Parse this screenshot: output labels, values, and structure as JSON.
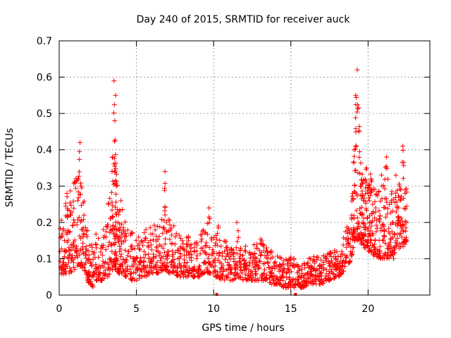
{
  "chart_data": {
    "type": "scatter",
    "title": "Day 240 of 2015, SRMTID for receiver auck",
    "xlabel": "GPS time / hours",
    "ylabel": "SRMTID / TECUs",
    "xlim": [
      0,
      24
    ],
    "ylim": [
      0,
      0.7
    ],
    "x_ticks": [
      0,
      5,
      10,
      15,
      20
    ],
    "y_ticks": [
      0,
      0.1,
      0.2,
      0.3,
      0.4,
      0.5,
      0.6,
      0.7
    ],
    "x_tick_labels": [
      "0",
      "5",
      "10",
      "15",
      "20"
    ],
    "y_tick_labels": [
      "0",
      "0.1",
      "0.2",
      "0.3",
      "0.4",
      "0.5",
      "0.6",
      "0.7"
    ],
    "grid": true,
    "marker": "+",
    "color": "#ff0000",
    "series": [
      {
        "name": "SRMTID",
        "x": [
          0.05,
          0.2,
          0.35,
          0.5,
          0.6,
          0.75,
          0.9,
          1.05,
          1.2,
          1.35,
          1.45,
          1.6,
          1.75,
          1.9,
          2.05,
          2.2,
          2.4,
          2.6,
          2.8,
          3.0,
          3.2,
          3.35,
          3.45,
          3.55,
          3.6,
          3.65,
          3.7,
          3.8,
          3.9,
          4.0,
          4.15,
          4.3,
          4.5,
          4.7,
          4.9,
          5.1,
          5.3,
          5.5,
          5.7,
          5.9,
          6.1,
          6.3,
          6.5,
          6.7,
          6.85,
          6.95,
          7.1,
          7.3,
          7.5,
          7.7,
          7.9,
          8.1,
          8.3,
          8.5,
          8.7,
          8.9,
          9.1,
          9.3,
          9.5,
          9.7,
          9.9,
          10.1,
          10.3,
          10.5,
          10.7,
          10.9,
          11.1,
          11.3,
          11.5,
          11.7,
          11.9,
          12.1,
          12.3,
          12.5,
          12.7,
          12.9,
          13.1,
          13.3,
          13.5,
          13.7,
          13.9,
          14.1,
          14.3,
          14.5,
          14.7,
          14.9,
          15.1,
          15.3,
          15.5,
          15.7,
          15.9,
          16.1,
          16.3,
          16.5,
          16.7,
          16.9,
          17.1,
          17.3,
          17.5,
          17.7,
          17.9,
          18.1,
          18.3,
          18.5,
          18.7,
          18.9,
          19.0,
          19.1,
          19.2,
          19.3,
          19.4,
          19.5,
          19.6,
          19.7,
          19.8,
          19.9,
          20.0,
          20.1,
          20.2,
          20.3,
          20.45,
          20.6,
          20.75,
          20.9,
          21.05,
          21.2,
          21.35,
          21.5,
          21.65,
          21.8,
          21.95,
          22.1,
          22.25,
          22.4,
          22.5
        ],
        "y": [
          0.12,
          0.08,
          0.15,
          0.28,
          0.1,
          0.22,
          0.14,
          0.31,
          0.26,
          0.42,
          0.18,
          0.22,
          0.12,
          0.06,
          0.09,
          0.05,
          0.13,
          0.08,
          0.11,
          0.09,
          0.25,
          0.14,
          0.38,
          0.59,
          0.48,
          0.55,
          0.3,
          0.2,
          0.12,
          0.26,
          0.18,
          0.09,
          0.12,
          0.08,
          0.1,
          0.07,
          0.09,
          0.12,
          0.08,
          0.15,
          0.1,
          0.13,
          0.11,
          0.17,
          0.34,
          0.2,
          0.12,
          0.09,
          0.14,
          0.1,
          0.08,
          0.11,
          0.09,
          0.12,
          0.07,
          0.1,
          0.08,
          0.13,
          0.09,
          0.24,
          0.11,
          0.08,
          0.19,
          0.07,
          0.12,
          0.09,
          0.06,
          0.1,
          0.2,
          0.08,
          0.11,
          0.07,
          0.09,
          0.06,
          0.1,
          0.08,
          0.14,
          0.07,
          0.09,
          0.06,
          0.08,
          0.05,
          0.07,
          0.04,
          0.06,
          0.05,
          0.08,
          0.03,
          0.05,
          0.07,
          0.04,
          0.06,
          0.08,
          0.05,
          0.07,
          0.06,
          0.09,
          0.07,
          0.08,
          0.06,
          0.1,
          0.08,
          0.12,
          0.09,
          0.14,
          0.18,
          0.28,
          0.4,
          0.55,
          0.62,
          0.45,
          0.3,
          0.22,
          0.26,
          0.18,
          0.35,
          0.28,
          0.2,
          0.32,
          0.25,
          0.15,
          0.12,
          0.21,
          0.3,
          0.18,
          0.38,
          0.14,
          0.26,
          0.1,
          0.33,
          0.24,
          0.17,
          0.41,
          0.28,
          0.2
        ],
        "band_low": [
          0.05,
          0.05,
          0.06,
          0.06,
          0.06,
          0.06,
          0.07,
          0.07,
          0.08,
          0.08,
          0.07,
          0.07,
          0.06,
          0.03,
          0.03,
          0.02,
          0.04,
          0.04,
          0.04,
          0.05,
          0.05,
          0.06,
          0.07,
          0.08,
          0.08,
          0.07,
          0.07,
          0.06,
          0.06,
          0.06,
          0.06,
          0.05,
          0.05,
          0.04,
          0.04,
          0.04,
          0.05,
          0.05,
          0.05,
          0.06,
          0.06,
          0.06,
          0.06,
          0.07,
          0.07,
          0.07,
          0.06,
          0.06,
          0.06,
          0.05,
          0.05,
          0.05,
          0.05,
          0.05,
          0.05,
          0.05,
          0.05,
          0.06,
          0.06,
          0.06,
          0.06,
          0.05,
          0.05,
          0.04,
          0.04,
          0.04,
          0.04,
          0.04,
          0.05,
          0.04,
          0.04,
          0.04,
          0.04,
          0.04,
          0.04,
          0.04,
          0.04,
          0.04,
          0.04,
          0.03,
          0.03,
          0.03,
          0.03,
          0.02,
          0.02,
          0.02,
          0.02,
          0.02,
          0.02,
          0.02,
          0.02,
          0.03,
          0.03,
          0.03,
          0.03,
          0.03,
          0.03,
          0.04,
          0.04,
          0.04,
          0.05,
          0.05,
          0.06,
          0.07,
          0.08,
          0.1,
          0.12,
          0.14,
          0.15,
          0.15,
          0.15,
          0.14,
          0.14,
          0.13,
          0.13,
          0.13,
          0.12,
          0.12,
          0.12,
          0.11,
          0.11,
          0.1,
          0.1,
          0.1,
          0.1,
          0.1,
          0.1,
          0.11,
          0.11,
          0.12,
          0.12,
          0.13,
          0.13,
          0.14,
          0.15
        ],
        "band_high": [
          0.22,
          0.2,
          0.24,
          0.3,
          0.28,
          0.29,
          0.3,
          0.34,
          0.35,
          0.42,
          0.3,
          0.27,
          0.22,
          0.16,
          0.15,
          0.14,
          0.18,
          0.17,
          0.18,
          0.2,
          0.26,
          0.28,
          0.4,
          0.59,
          0.52,
          0.5,
          0.38,
          0.3,
          0.26,
          0.3,
          0.26,
          0.2,
          0.2,
          0.18,
          0.17,
          0.17,
          0.18,
          0.19,
          0.19,
          0.2,
          0.2,
          0.21,
          0.21,
          0.22,
          0.34,
          0.22,
          0.21,
          0.2,
          0.2,
          0.19,
          0.18,
          0.18,
          0.18,
          0.18,
          0.17,
          0.17,
          0.17,
          0.18,
          0.18,
          0.24,
          0.18,
          0.17,
          0.19,
          0.16,
          0.16,
          0.16,
          0.15,
          0.15,
          0.2,
          0.15,
          0.15,
          0.14,
          0.14,
          0.14,
          0.14,
          0.14,
          0.16,
          0.13,
          0.13,
          0.13,
          0.12,
          0.11,
          0.11,
          0.1,
          0.1,
          0.1,
          0.11,
          0.1,
          0.1,
          0.1,
          0.1,
          0.1,
          0.11,
          0.11,
          0.11,
          0.11,
          0.12,
          0.12,
          0.12,
          0.12,
          0.13,
          0.14,
          0.15,
          0.17,
          0.2,
          0.25,
          0.32,
          0.42,
          0.56,
          0.63,
          0.5,
          0.4,
          0.35,
          0.34,
          0.32,
          0.38,
          0.34,
          0.32,
          0.35,
          0.33,
          0.3,
          0.28,
          0.3,
          0.34,
          0.3,
          0.4,
          0.28,
          0.32,
          0.26,
          0.36,
          0.32,
          0.3,
          0.42,
          0.34,
          0.3
        ],
        "markers_on_axis_x": [
          10.2,
          15.3
        ]
      }
    ]
  }
}
